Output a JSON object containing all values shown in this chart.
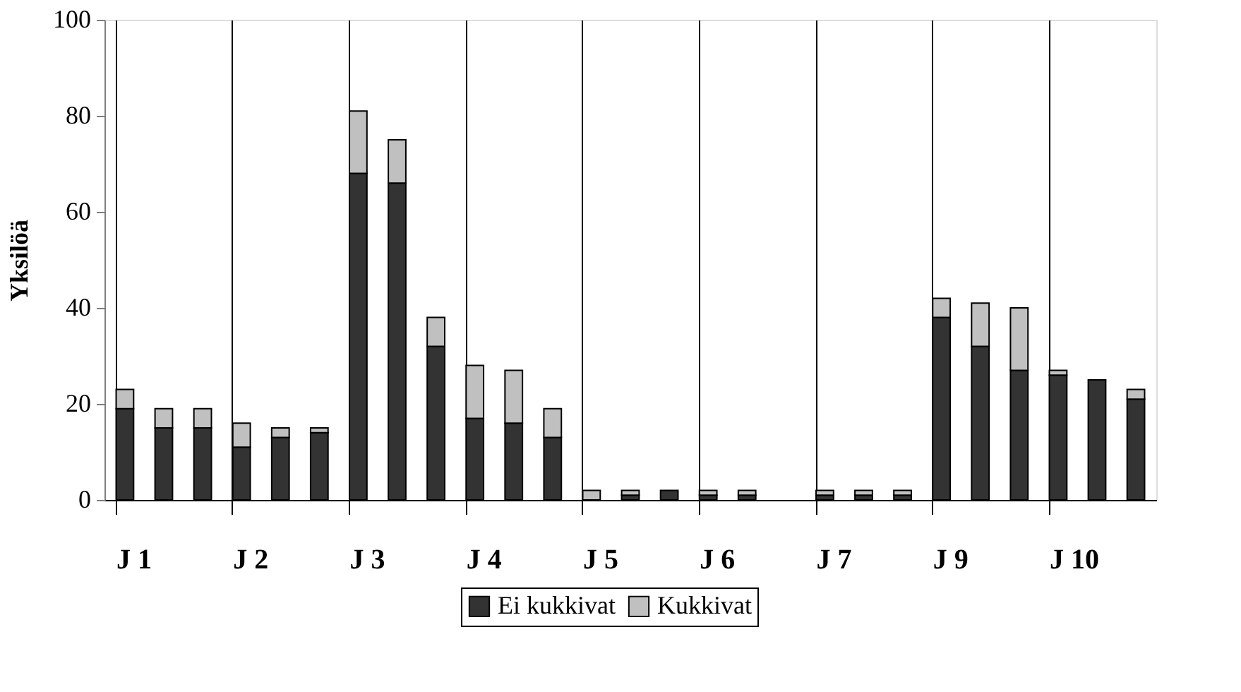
{
  "chart_data": {
    "type": "bar",
    "stacked": true,
    "ylabel": "Yksilöä",
    "categories": [
      "J 1",
      null,
      null,
      "J 2",
      null,
      null,
      "J 3",
      null,
      null,
      "J 4",
      null,
      null,
      "J 5",
      null,
      null,
      "J 6",
      null,
      null,
      "J 7",
      null,
      null,
      "J 9",
      null,
      null,
      "J 10",
      null,
      null
    ],
    "series": [
      {
        "name": "Ei kukkivat",
        "color": "#333333",
        "values": [
          19,
          15,
          15,
          11,
          13,
          14,
          68,
          66,
          32,
          17,
          16,
          13,
          0,
          1,
          2,
          1,
          1,
          0,
          1,
          1,
          1,
          38,
          32,
          27,
          26,
          25,
          21
        ]
      },
      {
        "name": "Kukkivat",
        "color": "#c0c0c0",
        "values": [
          4,
          4,
          4,
          5,
          2,
          1,
          13,
          9,
          6,
          11,
          11,
          6,
          2,
          1,
          0,
          1,
          1,
          0,
          1,
          1,
          1,
          4,
          9,
          13,
          1,
          0,
          2
        ]
      }
    ],
    "ylim": [
      0,
      100
    ],
    "yticks": [
      0,
      20,
      40,
      60,
      80,
      100
    ],
    "grid": "x",
    "legend": "bottom"
  }
}
